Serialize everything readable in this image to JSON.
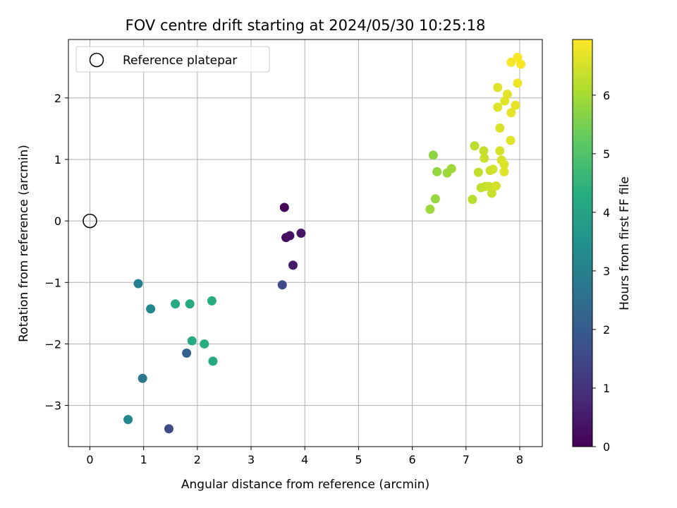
{
  "chart_data": {
    "type": "scatter",
    "title": "FOV centre drift starting at 2024/05/30 10:25:18",
    "xlabel": "Angular distance from reference (arcmin)",
    "ylabel": "Rotation from reference (arcmin)",
    "xlim": [
      -0.4,
      8.42
    ],
    "ylim": [
      -3.67,
      2.95
    ],
    "xticks": [
      0,
      1,
      2,
      3,
      4,
      5,
      6,
      7,
      8
    ],
    "yticks": [
      -3,
      -2,
      -1,
      0,
      1,
      2
    ],
    "grid": true,
    "colormap": "viridis",
    "colorbar": {
      "label": "Hours from first FF file",
      "range": [
        0,
        6.95
      ],
      "ticks": [
        0,
        1,
        2,
        3,
        4,
        5,
        6
      ]
    },
    "legend": {
      "placement": "upper-left",
      "entries": [
        "Reference platepar"
      ]
    },
    "reference": {
      "x": 0,
      "y": 0
    },
    "points": [
      {
        "x": 3.62,
        "y": 0.22,
        "h": 0.1
      },
      {
        "x": 3.65,
        "y": -0.27,
        "h": 0.2
      },
      {
        "x": 3.72,
        "y": -0.24,
        "h": 0.3
      },
      {
        "x": 3.93,
        "y": -0.2,
        "h": 0.4
      },
      {
        "x": 3.78,
        "y": -0.72,
        "h": 0.5
      },
      {
        "x": 3.58,
        "y": -1.04,
        "h": 1.55
      },
      {
        "x": 1.47,
        "y": -3.38,
        "h": 1.6
      },
      {
        "x": 1.8,
        "y": -2.15,
        "h": 2.2
      },
      {
        "x": 0.98,
        "y": -2.56,
        "h": 2.75
      },
      {
        "x": 0.9,
        "y": -1.02,
        "h": 3.0
      },
      {
        "x": 1.13,
        "y": -1.43,
        "h": 3.2
      },
      {
        "x": 0.71,
        "y": -3.23,
        "h": 3.2
      },
      {
        "x": 1.59,
        "y": -1.35,
        "h": 4.2
      },
      {
        "x": 1.86,
        "y": -1.35,
        "h": 4.2
      },
      {
        "x": 2.27,
        "y": -1.3,
        "h": 4.3
      },
      {
        "x": 1.9,
        "y": -1.95,
        "h": 4.2
      },
      {
        "x": 2.13,
        "y": -2.0,
        "h": 4.3
      },
      {
        "x": 2.29,
        "y": -2.28,
        "h": 4.2
      },
      {
        "x": 6.39,
        "y": 1.07,
        "h": 5.75
      },
      {
        "x": 6.46,
        "y": 0.8,
        "h": 5.8
      },
      {
        "x": 6.65,
        "y": 0.78,
        "h": 5.9
      },
      {
        "x": 6.73,
        "y": 0.85,
        "h": 5.9
      },
      {
        "x": 6.43,
        "y": 0.36,
        "h": 5.85
      },
      {
        "x": 6.33,
        "y": 0.19,
        "h": 5.9
      },
      {
        "x": 7.12,
        "y": 0.35,
        "h": 6.2
      },
      {
        "x": 7.16,
        "y": 1.22,
        "h": 6.25
      },
      {
        "x": 7.23,
        "y": 0.79,
        "h": 6.3
      },
      {
        "x": 7.28,
        "y": 0.54,
        "h": 6.3
      },
      {
        "x": 7.33,
        "y": 1.14,
        "h": 6.35
      },
      {
        "x": 7.34,
        "y": 1.02,
        "h": 6.4
      },
      {
        "x": 7.36,
        "y": 0.56,
        "h": 6.35
      },
      {
        "x": 7.43,
        "y": 0.56,
        "h": 6.4
      },
      {
        "x": 7.45,
        "y": 0.82,
        "h": 6.4
      },
      {
        "x": 7.5,
        "y": 0.84,
        "h": 6.45
      },
      {
        "x": 7.48,
        "y": 0.45,
        "h": 6.4
      },
      {
        "x": 7.56,
        "y": 0.57,
        "h": 6.5
      },
      {
        "x": 7.59,
        "y": 1.85,
        "h": 6.6
      },
      {
        "x": 7.59,
        "y": 2.17,
        "h": 6.6
      },
      {
        "x": 7.63,
        "y": 1.51,
        "h": 6.55
      },
      {
        "x": 7.63,
        "y": 1.14,
        "h": 6.55
      },
      {
        "x": 7.66,
        "y": 0.99,
        "h": 6.55
      },
      {
        "x": 7.71,
        "y": 0.92,
        "h": 6.6
      },
      {
        "x": 7.71,
        "y": 0.8,
        "h": 6.6
      },
      {
        "x": 7.72,
        "y": 1.95,
        "h": 6.65
      },
      {
        "x": 7.77,
        "y": 2.06,
        "h": 6.65
      },
      {
        "x": 7.83,
        "y": 1.31,
        "h": 6.65
      },
      {
        "x": 7.84,
        "y": 1.76,
        "h": 6.7
      },
      {
        "x": 7.84,
        "y": 2.58,
        "h": 6.85
      },
      {
        "x": 7.92,
        "y": 1.88,
        "h": 6.7
      },
      {
        "x": 7.96,
        "y": 2.24,
        "h": 6.8
      },
      {
        "x": 7.96,
        "y": 2.66,
        "h": 6.9
      },
      {
        "x": 8.02,
        "y": 2.55,
        "h": 6.9
      }
    ]
  }
}
